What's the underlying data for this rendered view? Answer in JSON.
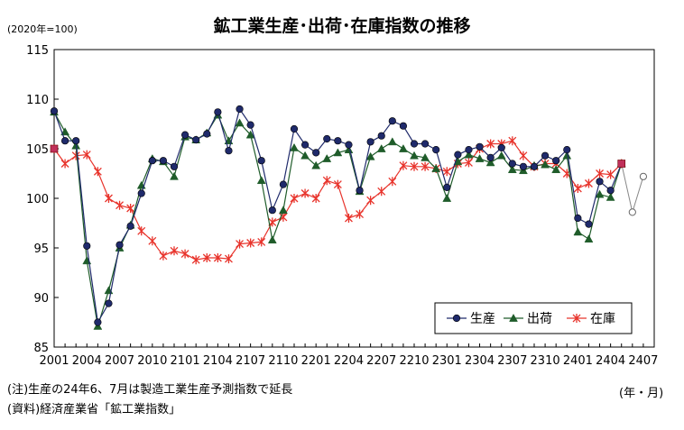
{
  "chart_data": {
    "type": "line",
    "title": "鉱工業生産･出荷･在庫指数の推移",
    "unit_label": "(2020年=100)",
    "x_unit_label": "(年・月)",
    "ylim": [
      85,
      115
    ],
    "yticks": [
      "85",
      "90",
      "95",
      "100",
      "105",
      "110",
      "115"
    ],
    "xticks": [
      "2001",
      "2004",
      "2007",
      "2010",
      "2101",
      "2104",
      "2107",
      "2110",
      "2201",
      "2204",
      "2207",
      "2210",
      "2301",
      "2304",
      "2307",
      "2310",
      "2401",
      "2404",
      "2407"
    ],
    "grid": false,
    "legend_position": "bottom-right",
    "notes": [
      "(注)生産の24年6、7月は製造工業生産予測指数で延長",
      "(資料)経済産業省「鉱工業指数」"
    ],
    "series": [
      {
        "name": "生産",
        "color": "#1F2A6B",
        "marker": "circle",
        "values": [
          108.8,
          105.8,
          105.8,
          95.2,
          87.5,
          89.4,
          95.3,
          97.2,
          100.5,
          103.8,
          103.8,
          103.2,
          106.4,
          105.9,
          106.5,
          108.7,
          104.8,
          109.0,
          107.4,
          103.8,
          98.8,
          101.4,
          107.0,
          105.4,
          104.6,
          106.0,
          105.8,
          105.4,
          100.8,
          105.7,
          106.3,
          107.8,
          107.3,
          105.5,
          105.5,
          104.9,
          101.1,
          104.4,
          104.9,
          105.2,
          104.1,
          105.1,
          103.5,
          103.2,
          103.2,
          104.3,
          103.8,
          104.9,
          98.0,
          97.4,
          101.7,
          100.8,
          103.5,
          98.6,
          102.2
        ]
      },
      {
        "name": "出荷",
        "color": "#1F5C2A",
        "marker": "triangle",
        "values": [
          108.7,
          106.7,
          105.3,
          93.7,
          87.1,
          90.7,
          95.0,
          97.3,
          101.3,
          104.0,
          103.7,
          102.2,
          106.2,
          105.9,
          106.6,
          108.4,
          105.8,
          107.6,
          106.4,
          101.8,
          95.8,
          98.8,
          105.1,
          104.3,
          103.3,
          104.0,
          104.6,
          104.9,
          100.7,
          104.2,
          105.0,
          105.7,
          105.0,
          104.3,
          104.1,
          103.0,
          100.0,
          103.7,
          104.4,
          104.0,
          103.6,
          104.3,
          102.9,
          102.8,
          103.3,
          103.4,
          102.9,
          104.3,
          96.6,
          95.9,
          100.4,
          100.1,
          103.5
        ]
      },
      {
        "name": "在庫",
        "color": "#E8342C",
        "marker": "star",
        "values": [
          105.0,
          103.5,
          104.3,
          104.4,
          102.7,
          100.0,
          99.3,
          99.0,
          96.7,
          95.7,
          94.2,
          94.7,
          94.4,
          93.8,
          94.0,
          94.0,
          93.9,
          95.4,
          95.5,
          95.6,
          97.6,
          98.1,
          100.0,
          100.5,
          100.0,
          101.8,
          101.4,
          98.0,
          98.4,
          99.8,
          100.7,
          101.7,
          103.3,
          103.2,
          103.2,
          103.0,
          102.7,
          103.5,
          103.6,
          105.0,
          105.5,
          105.5,
          105.8,
          104.3,
          103.2,
          103.5,
          103.5,
          102.5,
          101.0,
          101.5,
          102.5,
          102.4,
          103.5
        ]
      }
    ]
  }
}
